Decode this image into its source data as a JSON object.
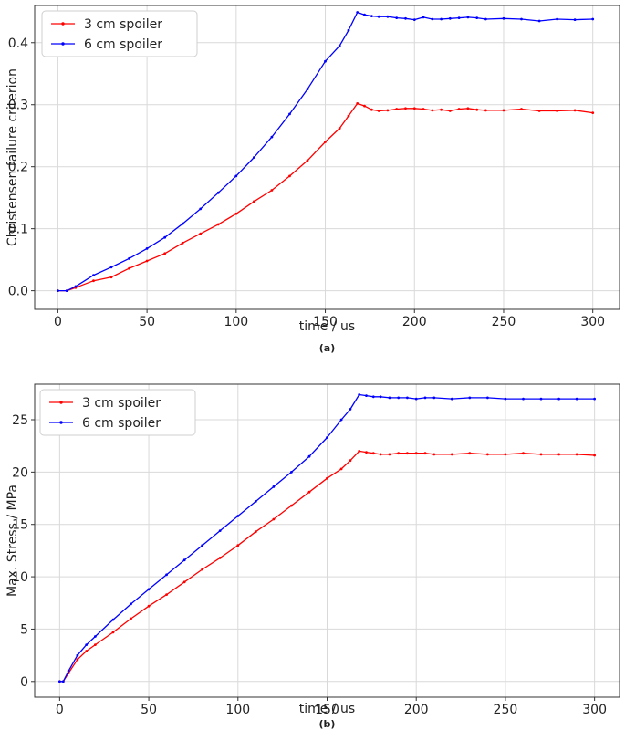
{
  "chart_data": [
    {
      "id": "a",
      "type": "line",
      "caption": "(a)",
      "title": "",
      "xlabel": "time / us",
      "ylabel": "Christensen failure criterion",
      "xlim": [
        -13,
        315
      ],
      "ylim": [
        -0.03,
        0.46
      ],
      "xticks": [
        0,
        50,
        100,
        150,
        200,
        250,
        300
      ],
      "xtick_labels": [
        "0",
        "50",
        "100",
        "150",
        "200",
        "250",
        "300"
      ],
      "yticks": [
        0.0,
        0.1,
        0.2,
        0.3,
        0.4
      ],
      "ytick_labels": [
        "0.0",
        "0.1",
        "0.2",
        "0.3",
        "0.4"
      ],
      "grid": true,
      "legend_position": "top-left",
      "series": [
        {
          "name": "3 cm spoiler",
          "color": "#ff0000",
          "x": [
            0,
            5,
            10,
            20,
            30,
            40,
            50,
            60,
            70,
            80,
            90,
            100,
            110,
            120,
            130,
            140,
            150,
            158,
            163,
            168,
            172,
            176,
            180,
            185,
            190,
            195,
            200,
            205,
            210,
            215,
            220,
            225,
            230,
            235,
            240,
            250,
            260,
            270,
            280,
            290,
            300
          ],
          "values": [
            0.0,
            0.0,
            0.005,
            0.016,
            0.022,
            0.036,
            0.048,
            0.06,
            0.077,
            0.092,
            0.107,
            0.124,
            0.144,
            0.162,
            0.185,
            0.21,
            0.24,
            0.262,
            0.282,
            0.302,
            0.298,
            0.292,
            0.29,
            0.291,
            0.293,
            0.294,
            0.294,
            0.293,
            0.291,
            0.292,
            0.29,
            0.293,
            0.294,
            0.292,
            0.291,
            0.291,
            0.293,
            0.29,
            0.29,
            0.291,
            0.287
          ]
        },
        {
          "name": "6 cm spoiler",
          "color": "#0000ff",
          "x": [
            0,
            5,
            10,
            20,
            30,
            40,
            50,
            60,
            70,
            80,
            90,
            100,
            110,
            120,
            130,
            140,
            150,
            158,
            163,
            168,
            172,
            176,
            180,
            185,
            190,
            195,
            200,
            205,
            210,
            215,
            220,
            225,
            230,
            235,
            240,
            250,
            260,
            270,
            280,
            290,
            300
          ],
          "values": [
            0.0,
            0.0,
            0.007,
            0.025,
            0.038,
            0.052,
            0.068,
            0.086,
            0.108,
            0.132,
            0.158,
            0.185,
            0.215,
            0.248,
            0.285,
            0.325,
            0.37,
            0.395,
            0.42,
            0.449,
            0.445,
            0.443,
            0.442,
            0.442,
            0.44,
            0.439,
            0.437,
            0.441,
            0.438,
            0.438,
            0.439,
            0.44,
            0.441,
            0.44,
            0.438,
            0.439,
            0.438,
            0.435,
            0.438,
            0.437,
            0.438
          ]
        }
      ]
    },
    {
      "id": "b",
      "type": "line",
      "caption": "(b)",
      "title": "",
      "xlabel": "time / us",
      "ylabel": "Max. Stress / MPa",
      "xlim": [
        -14,
        314
      ],
      "ylim": [
        -1.5,
        28.4
      ],
      "xticks": [
        0,
        50,
        100,
        150,
        200,
        250,
        300
      ],
      "xtick_labels": [
        "0",
        "50",
        "100",
        "150",
        "200",
        "250",
        "300"
      ],
      "yticks": [
        0,
        5,
        10,
        15,
        20,
        25
      ],
      "ytick_labels": [
        "0",
        "5",
        "10",
        "15",
        "20",
        "25"
      ],
      "grid": true,
      "legend_position": "top-left",
      "series": [
        {
          "name": "3 cm spoiler",
          "color": "#ff0000",
          "x": [
            0,
            2,
            5,
            10,
            15,
            20,
            30,
            40,
            50,
            60,
            70,
            80,
            90,
            100,
            110,
            120,
            130,
            140,
            150,
            158,
            163,
            168,
            172,
            176,
            180,
            185,
            190,
            195,
            200,
            205,
            210,
            220,
            230,
            240,
            250,
            260,
            270,
            280,
            290,
            300
          ],
          "values": [
            0.0,
            0.0,
            0.8,
            2.1,
            2.9,
            3.5,
            4.7,
            6.0,
            7.2,
            8.3,
            9.5,
            10.7,
            11.8,
            13.0,
            14.3,
            15.5,
            16.8,
            18.1,
            19.4,
            20.3,
            21.1,
            22.0,
            21.9,
            21.8,
            21.7,
            21.7,
            21.8,
            21.8,
            21.8,
            21.8,
            21.7,
            21.7,
            21.8,
            21.7,
            21.7,
            21.8,
            21.7,
            21.7,
            21.7,
            21.6
          ]
        },
        {
          "name": "6 cm spoiler",
          "color": "#0000ff",
          "x": [
            0,
            2,
            5,
            10,
            15,
            20,
            30,
            40,
            50,
            60,
            70,
            80,
            90,
            100,
            110,
            120,
            130,
            140,
            150,
            158,
            163,
            168,
            172,
            176,
            180,
            185,
            190,
            195,
            200,
            205,
            210,
            220,
            230,
            240,
            250,
            260,
            270,
            280,
            290,
            300
          ],
          "values": [
            0.0,
            0.0,
            1.0,
            2.5,
            3.5,
            4.3,
            5.9,
            7.4,
            8.8,
            10.2,
            11.6,
            13.0,
            14.4,
            15.8,
            17.2,
            18.6,
            20.0,
            21.5,
            23.3,
            25.0,
            26.0,
            27.4,
            27.3,
            27.2,
            27.2,
            27.1,
            27.1,
            27.1,
            27.0,
            27.1,
            27.1,
            27.0,
            27.1,
            27.1,
            27.0,
            27.0,
            27.0,
            27.0,
            27.0,
            27.0
          ]
        }
      ]
    }
  ]
}
